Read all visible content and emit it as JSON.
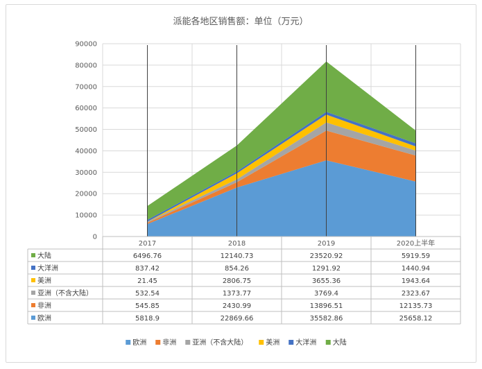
{
  "chart_data": {
    "type": "area",
    "stacked": true,
    "title": "派能各地区销售额：单位（万元）",
    "categories": [
      "2017",
      "2018",
      "2019",
      "2020上半年"
    ],
    "ylim": [
      0,
      90000
    ],
    "yticks": [
      0,
      10000,
      20000,
      30000,
      40000,
      50000,
      60000,
      70000,
      80000,
      90000
    ],
    "grid": true,
    "legend_position": "bottom",
    "data_table": true,
    "series": [
      {
        "name": "欧洲",
        "color": "#5B9BD5",
        "values": [
          5818.9,
          22869.66,
          35582.86,
          25658.12
        ],
        "labels": [
          "5818.9",
          "22869.66",
          "35582.86",
          "25658.12"
        ]
      },
      {
        "name": "非洲",
        "color": "#ED7D31",
        "values": [
          545.85,
          2430.99,
          13896.51,
          12135.73
        ],
        "labels": [
          "545.85",
          "2430.99",
          "13896.51",
          "12135.73"
        ]
      },
      {
        "name": "亚洲（不含大陆）",
        "color": "#A5A5A5",
        "values": [
          532.54,
          1373.77,
          3769.4,
          2323.67
        ],
        "labels": [
          "532.54",
          "1373.77",
          "3769.4",
          "2323.67"
        ]
      },
      {
        "name": "美洲",
        "color": "#FFC000",
        "values": [
          21.45,
          2806.75,
          3655.36,
          1943.64
        ],
        "labels": [
          "21.45",
          "2806.75",
          "3655.36",
          "1943.64"
        ]
      },
      {
        "name": "大洋洲",
        "color": "#4472C4",
        "values": [
          837.42,
          854.26,
          1291.92,
          1440.94
        ],
        "labels": [
          "837.42",
          "854.26",
          "1291.92",
          "1440.94"
        ]
      },
      {
        "name": "大陆",
        "color": "#70AD47",
        "values": [
          6496.76,
          12140.73,
          23520.92,
          5919.59
        ],
        "labels": [
          "6496.76",
          "12140.73",
          "23520.92",
          "5919.59"
        ]
      }
    ]
  }
}
